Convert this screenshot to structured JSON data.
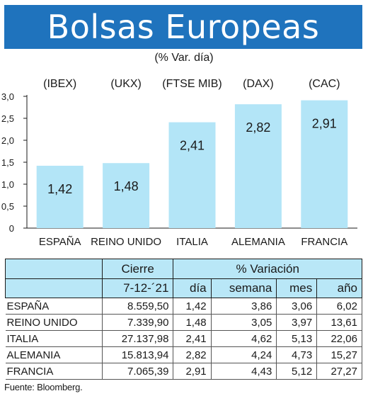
{
  "header": {
    "title": "Bolsas Europeas",
    "subtitle": "(% Var. día)"
  },
  "chart_data": {
    "type": "bar",
    "categories": [
      "ESPAÑA",
      "REINO UNIDO",
      "ITALIA",
      "ALEMANIA",
      "FRANCIA"
    ],
    "indices": [
      "(IBEX)",
      "(UKX)",
      "(FTSE MIB)",
      "(DAX)",
      "(CAC)"
    ],
    "values": [
      1.42,
      1.48,
      2.41,
      2.82,
      2.91
    ],
    "value_labels": [
      "1,42",
      "1,48",
      "2,41",
      "2,82",
      "2,91"
    ],
    "ylim": [
      0,
      3.0
    ],
    "yticks": [
      0,
      0.5,
      1.0,
      1.5,
      2.0,
      2.5,
      3.0
    ],
    "ytick_labels": [
      "0",
      "0,5",
      "1,0",
      "1,5",
      "2,0",
      "2,5",
      "3,0"
    ],
    "bar_color": "#b3e5f7",
    "grid": false,
    "title": "",
    "xlabel": "",
    "ylabel": ""
  },
  "table": {
    "group_headers": [
      "Cierre",
      "% Variación"
    ],
    "date_header": "7-12-´21",
    "sub_headers": [
      "día",
      "semana",
      "mes",
      "año"
    ],
    "rows": [
      {
        "country": "ESPAÑA",
        "cierre": "8.559,50",
        "dia": "1,42",
        "semana": "3,86",
        "mes": "3,06",
        "ano": "6,02"
      },
      {
        "country": "REINO UNIDO",
        "cierre": "7.339,90",
        "dia": "1,48",
        "semana": "3,05",
        "mes": "3,97",
        "ano": "13,61"
      },
      {
        "country": "ITALIA",
        "cierre": "27.137,98",
        "dia": "2,41",
        "semana": "4,62",
        "mes": "5,13",
        "ano": "22,06"
      },
      {
        "country": "ALEMANIA",
        "cierre": "15.813,94",
        "dia": "2,82",
        "semana": "4,24",
        "mes": "4,73",
        "ano": "15,27"
      },
      {
        "country": "FRANCIA",
        "cierre": "7.065,39",
        "dia": "2,91",
        "semana": "4,43",
        "mes": "5,12",
        "ano": "27,27"
      }
    ]
  },
  "footer": {
    "source": "Fuente: Bloomberg."
  },
  "colors": {
    "banner": "#1f73bd",
    "bar": "#b3e5f7",
    "table_header": "#b9e7f7"
  }
}
